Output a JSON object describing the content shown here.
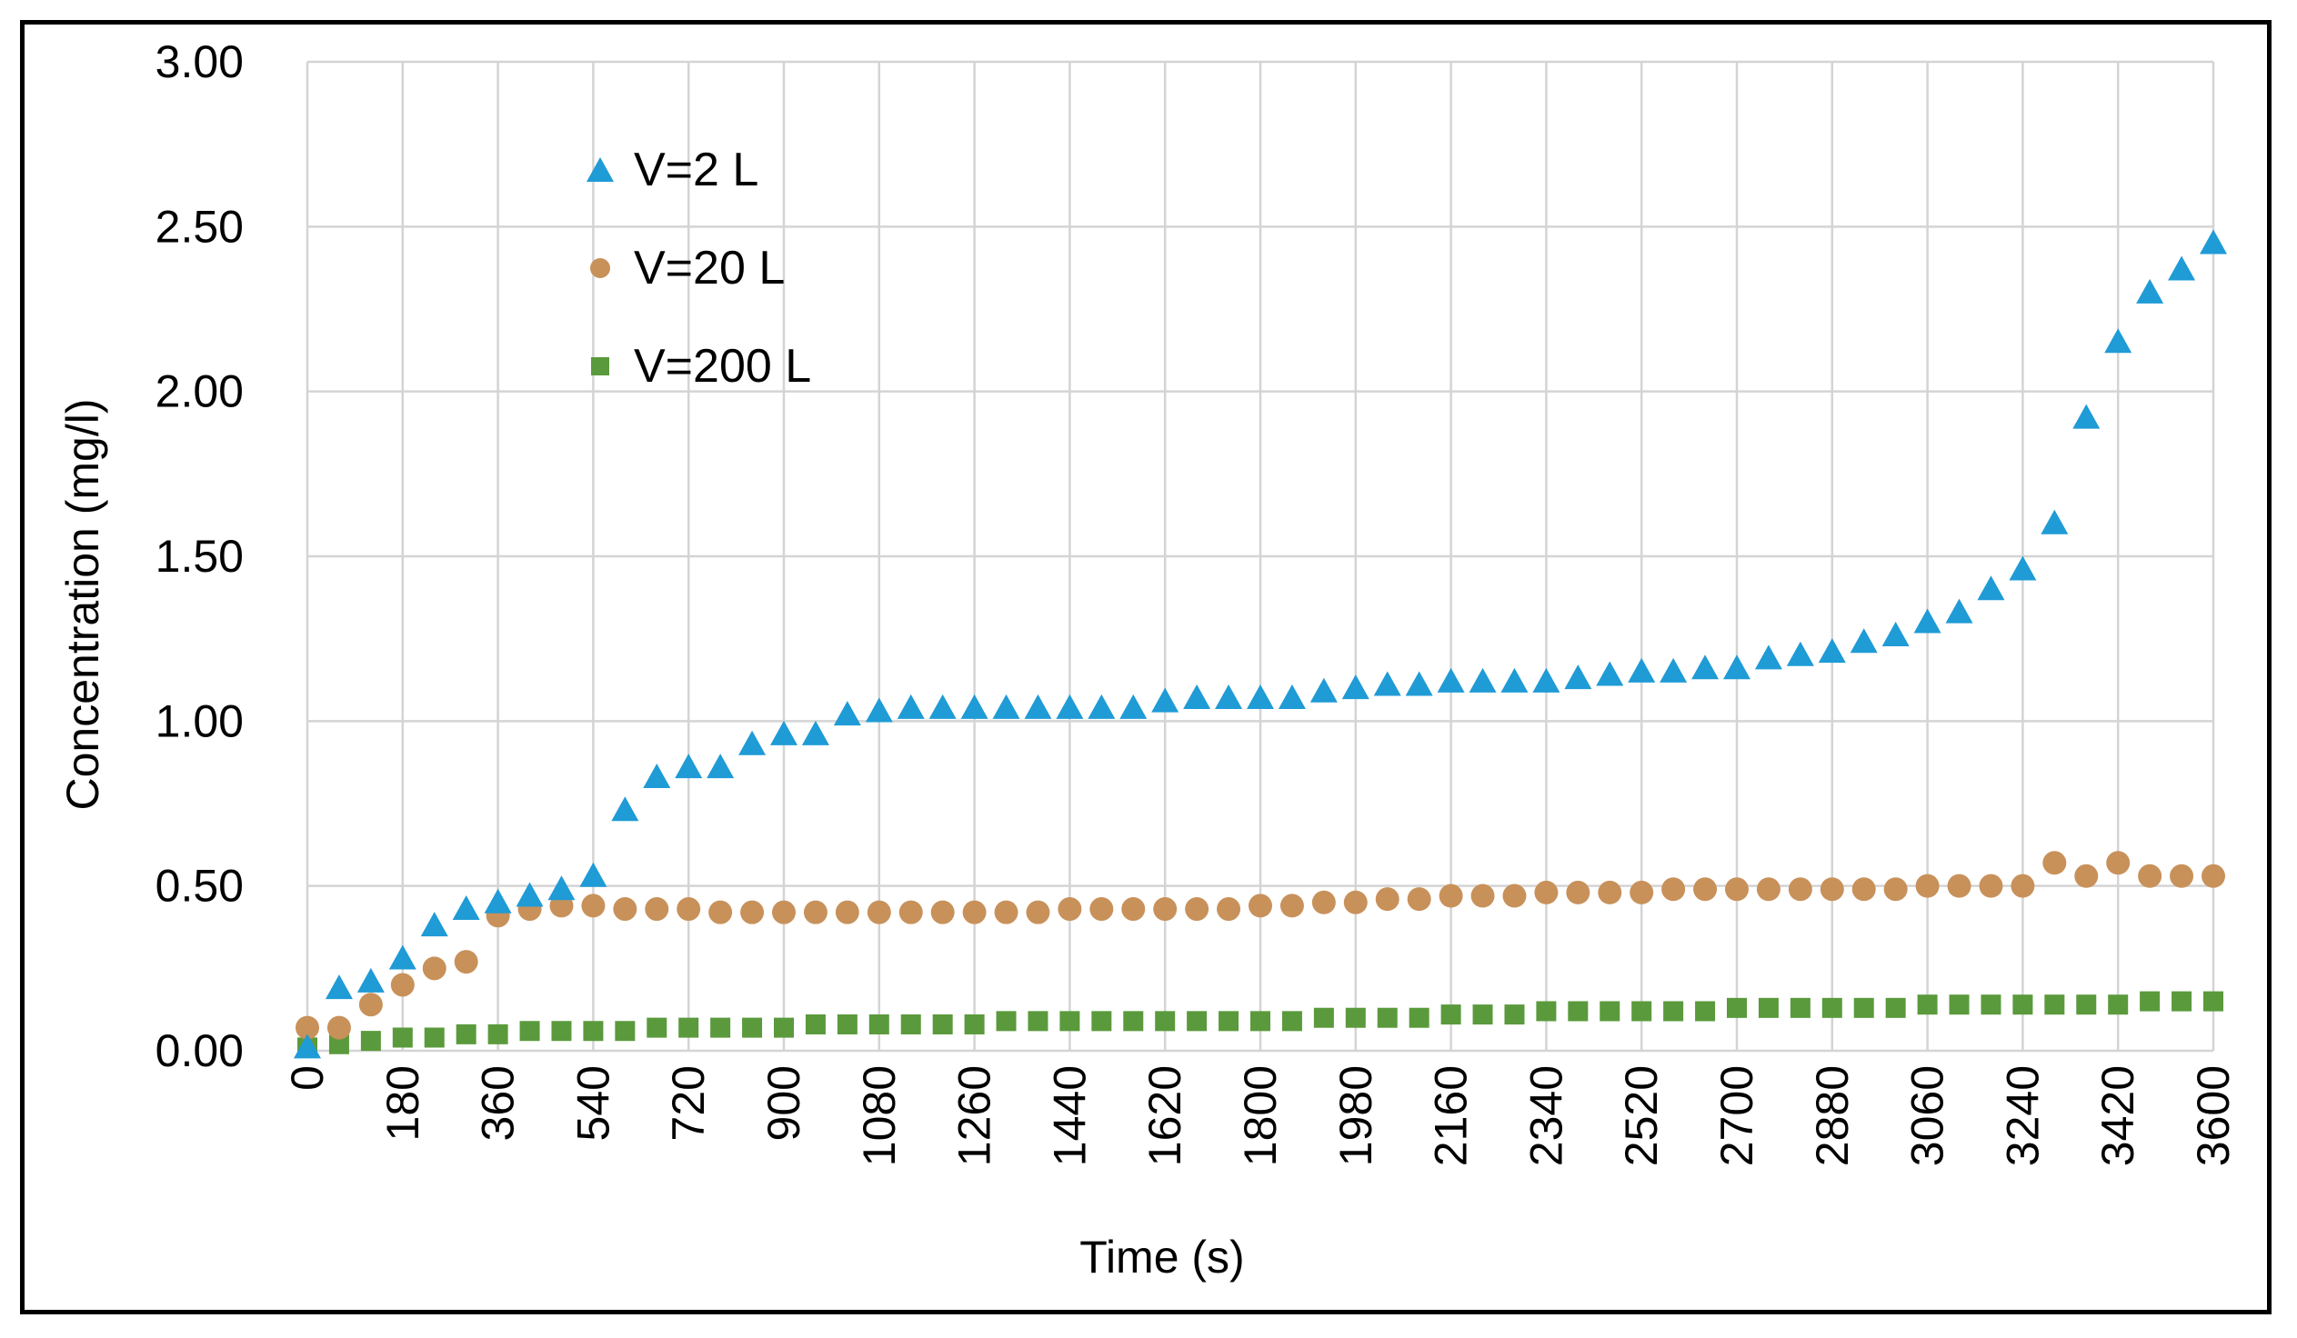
{
  "chart_data": {
    "type": "scatter",
    "title": "",
    "xlabel": "Time (s)",
    "ylabel": "Concentration (mg/l)",
    "xlim": [
      0,
      3600
    ],
    "ylim": [
      0,
      3.0
    ],
    "x_ticks": [
      "0",
      "180",
      "360",
      "540",
      "720",
      "900",
      "1080",
      "1260",
      "1440",
      "1620",
      "1800",
      "1980",
      "2160",
      "2340",
      "2520",
      "2700",
      "2880",
      "3060",
      "3240",
      "3420",
      "3600"
    ],
    "y_ticks": [
      "0.00",
      "0.50",
      "1.00",
      "1.50",
      "2.00",
      "2.50",
      "3.00"
    ],
    "grid": true,
    "legend_position": "top-left",
    "x": [
      0,
      60,
      120,
      180,
      240,
      300,
      360,
      420,
      480,
      540,
      600,
      660,
      720,
      780,
      840,
      900,
      960,
      1020,
      1080,
      1140,
      1200,
      1260,
      1320,
      1380,
      1440,
      1500,
      1560,
      1620,
      1680,
      1740,
      1800,
      1860,
      1920,
      1980,
      2040,
      2100,
      2160,
      2220,
      2280,
      2340,
      2400,
      2460,
      2520,
      2580,
      2640,
      2700,
      2760,
      2820,
      2880,
      2940,
      3000,
      3060,
      3120,
      3180,
      3240,
      3300,
      3360,
      3420,
      3480,
      3540,
      3600
    ],
    "series": [
      {
        "name": "V=2 L",
        "marker": "triangle",
        "color": "#1f9bd6",
        "values": [
          0.01,
          0.19,
          0.21,
          0.28,
          0.38,
          0.43,
          0.45,
          0.47,
          0.49,
          0.53,
          0.73,
          0.83,
          0.86,
          0.86,
          0.93,
          0.96,
          0.96,
          1.02,
          1.03,
          1.04,
          1.04,
          1.04,
          1.04,
          1.04,
          1.04,
          1.04,
          1.04,
          1.06,
          1.07,
          1.07,
          1.07,
          1.07,
          1.09,
          1.1,
          1.11,
          1.11,
          1.12,
          1.12,
          1.12,
          1.12,
          1.13,
          1.14,
          1.15,
          1.15,
          1.16,
          1.16,
          1.19,
          1.2,
          1.21,
          1.24,
          1.26,
          1.3,
          1.33,
          1.4,
          1.46,
          1.6,
          1.92,
          2.15,
          2.3,
          2.37,
          2.45
        ]
      },
      {
        "name": "V=20 L",
        "marker": "circle",
        "color": "#c8915a",
        "values": [
          0.07,
          0.07,
          0.14,
          0.2,
          0.25,
          0.27,
          0.41,
          0.43,
          0.44,
          0.44,
          0.43,
          0.43,
          0.43,
          0.42,
          0.42,
          0.42,
          0.42,
          0.42,
          0.42,
          0.42,
          0.42,
          0.42,
          0.42,
          0.42,
          0.43,
          0.43,
          0.43,
          0.43,
          0.43,
          0.43,
          0.44,
          0.44,
          0.45,
          0.45,
          0.46,
          0.46,
          0.47,
          0.47,
          0.47,
          0.48,
          0.48,
          0.48,
          0.48,
          0.49,
          0.49,
          0.49,
          0.49,
          0.49,
          0.49,
          0.49,
          0.49,
          0.5,
          0.5,
          0.5,
          0.5,
          0.57,
          0.53,
          0.57,
          0.53,
          0.53,
          0.53
        ]
      },
      {
        "name": "V=200 L",
        "marker": "square",
        "color": "#5a9a3c",
        "values": [
          0.01,
          0.02,
          0.03,
          0.04,
          0.04,
          0.05,
          0.05,
          0.06,
          0.06,
          0.06,
          0.06,
          0.07,
          0.07,
          0.07,
          0.07,
          0.07,
          0.08,
          0.08,
          0.08,
          0.08,
          0.08,
          0.08,
          0.09,
          0.09,
          0.09,
          0.09,
          0.09,
          0.09,
          0.09,
          0.09,
          0.09,
          0.09,
          0.1,
          0.1,
          0.1,
          0.1,
          0.11,
          0.11,
          0.11,
          0.12,
          0.12,
          0.12,
          0.12,
          0.12,
          0.12,
          0.13,
          0.13,
          0.13,
          0.13,
          0.13,
          0.13,
          0.14,
          0.14,
          0.14,
          0.14,
          0.14,
          0.14,
          0.14,
          0.15,
          0.15,
          0.15
        ]
      }
    ]
  }
}
